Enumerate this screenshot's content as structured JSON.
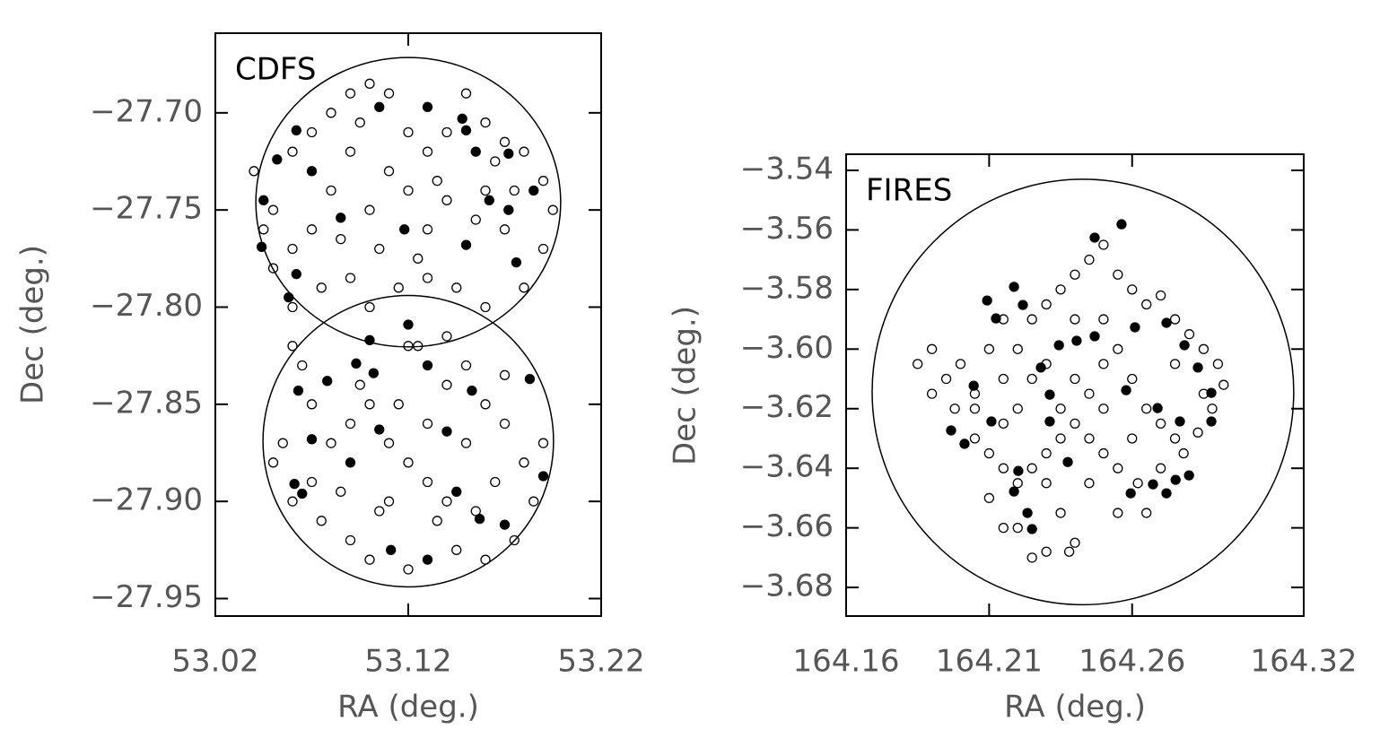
{
  "chart_data": [
    {
      "type": "scatter",
      "title": "CDFS",
      "xlabel": "RA (deg.)",
      "ylabel": "Dec (deg.)",
      "xlim": [
        53.02,
        53.22
      ],
      "ylim": [
        -27.959,
        -27.659
      ],
      "xticks": [
        53.02,
        53.12,
        53.22
      ],
      "yticks": [
        {
          "value": -27.7,
          "label": "−27.70"
        },
        {
          "value": -27.75,
          "label": "−27.75"
        },
        {
          "value": -27.8,
          "label": "−27.80"
        },
        {
          "value": -27.85,
          "label": "−27.85"
        },
        {
          "value": -27.9,
          "label": "−27.90"
        },
        {
          "value": -27.95,
          "label": "−27.95"
        }
      ],
      "fields": [
        {
          "x": 53.12,
          "y": -27.746,
          "rx": 0.079,
          "ry": 0.0745
        },
        {
          "x": 53.12,
          "y": -27.869,
          "rx": 0.0753,
          "ry": 0.075
        }
      ],
      "series": [
        {
          "marker": "open",
          "color": "#000000",
          "x": [
            53.04,
            53.05,
            53.06,
            53.07,
            53.08,
            53.09,
            53.1,
            53.11,
            53.12,
            53.13,
            53.14,
            53.15,
            53.16,
            53.17,
            53.18,
            53.19,
            53.195,
            53.19,
            53.18,
            53.17,
            53.16,
            53.14,
            53.13,
            53.12,
            53.11,
            53.1,
            53.09,
            53.08,
            53.07,
            53.06,
            53.05,
            53.06,
            53.075,
            53.09,
            53.1,
            53.115,
            53.13,
            53.145,
            53.16,
            53.14,
            53.12,
            53.105,
            53.125,
            53.085,
            53.155,
            53.175,
            53.045,
            53.095,
            53.135,
            53.165,
            53.06,
            53.07,
            53.055,
            53.05,
            53.06,
            53.075,
            53.085,
            53.09,
            53.1,
            53.11,
            53.12,
            53.13,
            53.14,
            53.15,
            53.16,
            53.17,
            53.18,
            53.19,
            53.185,
            53.175,
            53.16,
            53.145,
            53.135,
            53.12,
            53.11,
            53.1,
            53.09,
            53.08,
            53.095,
            53.115,
            53.13,
            53.15,
            53.165,
            53.14,
            53.07,
            53.065,
            53.125,
            53.17,
            53.155,
            53.105
          ],
          "y": [
            -27.73,
            -27.75,
            -27.72,
            -27.71,
            -27.7,
            -27.69,
            -27.685,
            -27.69,
            -27.71,
            -27.72,
            -27.71,
            -27.69,
            -27.705,
            -27.715,
            -27.72,
            -27.735,
            -27.75,
            -27.77,
            -27.79,
            -27.76,
            -27.74,
            -27.745,
            -27.76,
            -27.74,
            -27.73,
            -27.75,
            -27.72,
            -27.74,
            -27.76,
            -27.77,
            -27.78,
            -27.8,
            -27.79,
            -27.785,
            -27.8,
            -27.79,
            -27.785,
            -27.79,
            -27.8,
            -27.815,
            -27.82,
            -27.77,
            -27.775,
            -27.765,
            -27.755,
            -27.74,
            -27.76,
            -27.705,
            -27.735,
            -27.725,
            -27.82,
            -27.85,
            -27.87,
            -27.88,
            -27.9,
            -27.91,
            -27.895,
            -27.92,
            -27.93,
            -27.9,
            -27.88,
            -27.86,
            -27.84,
            -27.83,
            -27.85,
            -27.86,
            -27.88,
            -27.87,
            -27.9,
            -27.92,
            -27.93,
            -27.925,
            -27.91,
            -27.935,
            -27.87,
            -27.85,
            -27.86,
            -27.87,
            -27.84,
            -27.85,
            -27.89,
            -27.87,
            -27.89,
            -27.9,
            -27.89,
            -27.83,
            -27.82,
            -27.835,
            -27.905,
            -27.905
          ]
        },
        {
          "marker": "filled",
          "color": "#000000",
          "x": [
            53.062,
            53.07,
            53.052,
            53.105,
            53.13,
            53.148,
            53.15,
            53.155,
            53.172,
            53.185,
            53.172,
            53.162,
            53.045,
            53.044,
            53.062,
            53.058,
            53.085,
            53.118,
            53.15,
            53.176,
            53.12,
            53.13,
            53.1,
            53.093,
            53.078,
            53.063,
            53.07,
            53.09,
            53.102,
            53.153,
            53.183,
            53.14,
            53.105,
            53.145,
            53.157,
            53.13,
            53.111,
            53.17,
            53.19,
            53.061,
            53.065
          ],
          "y": [
            -27.709,
            -27.73,
            -27.724,
            -27.697,
            -27.697,
            -27.703,
            -27.709,
            -27.72,
            -27.721,
            -27.74,
            -27.75,
            -27.745,
            -27.745,
            -27.769,
            -27.783,
            -27.795,
            -27.754,
            -27.76,
            -27.768,
            -27.777,
            -27.809,
            -27.83,
            -27.817,
            -27.829,
            -27.838,
            -27.843,
            -27.868,
            -27.88,
            -27.834,
            -27.843,
            -27.837,
            -27.864,
            -27.863,
            -27.895,
            -27.909,
            -27.93,
            -27.925,
            -27.912,
            -27.887,
            -27.891,
            -27.896
          ]
        }
      ]
    },
    {
      "type": "scatter",
      "title": "FIRES",
      "xlabel": "RA (deg.)",
      "ylabel": "Dec (deg.)",
      "xlim": [
        164.16,
        164.32
      ],
      "ylim": [
        -3.6896,
        -3.5346
      ],
      "xticks": [
        164.16,
        164.21,
        164.26,
        164.32
      ],
      "yticks": [
        {
          "value": -3.54,
          "label": "−3.54"
        },
        {
          "value": -3.56,
          "label": "−3.56"
        },
        {
          "value": -3.58,
          "label": "−3.58"
        },
        {
          "value": -3.6,
          "label": "−3.60"
        },
        {
          "value": -3.62,
          "label": "−3.62"
        },
        {
          "value": -3.64,
          "label": "−3.64"
        },
        {
          "value": -3.66,
          "label": "−3.66"
        },
        {
          "value": -3.68,
          "label": "−3.68"
        }
      ],
      "fields": [
        {
          "x": 164.2428,
          "y": -3.6144,
          "rx": 0.0737,
          "ry": 0.0714
        }
      ],
      "series": [
        {
          "marker": "open",
          "color": "#000000",
          "x": [
            164.185,
            164.19,
            164.195,
            164.19,
            164.2,
            164.205,
            164.198,
            164.21,
            164.215,
            164.22,
            164.225,
            164.23,
            164.235,
            164.24,
            164.245,
            164.25,
            164.255,
            164.26,
            164.265,
            164.27,
            164.275,
            164.28,
            164.285,
            164.29,
            164.292,
            164.288,
            164.283,
            164.278,
            164.27,
            164.262,
            164.255,
            164.25,
            164.245,
            164.24,
            164.235,
            164.23,
            164.225,
            164.22,
            164.215,
            164.21,
            164.205,
            164.215,
            164.22,
            164.225,
            164.23,
            164.24,
            164.245,
            164.25,
            164.255,
            164.26,
            164.265,
            164.27,
            164.26,
            164.25,
            164.235,
            164.23,
            164.235,
            164.24,
            164.238,
            164.23,
            164.225,
            164.22,
            164.215,
            164.21,
            164.245,
            164.255,
            164.265,
            164.275,
            164.205,
            164.215,
            164.24,
            164.25,
            164.275,
            164.285
          ],
          "y": [
            -3.605,
            -3.6,
            -3.61,
            -3.615,
            -3.605,
            -3.615,
            -3.62,
            -3.6,
            -3.59,
            -3.6,
            -3.59,
            -3.585,
            -3.58,
            -3.575,
            -3.57,
            -3.565,
            -3.575,
            -3.58,
            -3.585,
            -3.582,
            -3.59,
            -3.595,
            -3.6,
            -3.605,
            -3.612,
            -3.62,
            -3.628,
            -3.635,
            -3.64,
            -3.645,
            -3.64,
            -3.635,
            -3.63,
            -3.625,
            -3.63,
            -3.635,
            -3.64,
            -3.645,
            -3.64,
            -3.635,
            -3.63,
            -3.625,
            -3.62,
            -3.61,
            -3.605,
            -3.61,
            -3.615,
            -3.605,
            -3.6,
            -3.61,
            -3.62,
            -3.625,
            -3.63,
            -3.62,
            -3.62,
            -3.645,
            -3.655,
            -3.665,
            -3.668,
            -3.668,
            -3.67,
            -3.66,
            -3.66,
            -3.65,
            -3.645,
            -3.655,
            -3.655,
            -3.63,
            -3.62,
            -3.61,
            -3.59,
            -3.59,
            -3.605,
            -3.615
          ]
        },
        {
          "marker": "filled",
          "color": "#000000",
          "x": [
            164.2563,
            164.2469,
            164.2187,
            164.2093,
            164.2124,
            164.2218,
            164.2344,
            164.2406,
            164.2469,
            164.261,
            164.272,
            164.2783,
            164.283,
            164.2877,
            164.2877,
            164.2767,
            164.2689,
            164.2579,
            164.2281,
            164.2312,
            164.2046,
            164.1967,
            164.2014,
            164.2108,
            164.2312,
            164.2202,
            164.2187,
            164.2234,
            164.225,
            164.2375,
            164.2595,
            164.2673,
            164.2752,
            164.2799,
            164.272
          ],
          "y": [
            -3.5581,
            -3.5626,
            -3.5791,
            -3.5837,
            -3.5897,
            -3.5852,
            -3.5987,
            -3.5972,
            -3.5957,
            -3.5927,
            -3.5912,
            -3.5987,
            -3.6062,
            -3.6147,
            -3.6243,
            -3.6243,
            -3.6198,
            -3.6138,
            -3.6062,
            -3.6153,
            -3.6123,
            -3.6273,
            -3.6318,
            -3.6243,
            -3.6243,
            -3.6409,
            -3.6478,
            -3.655,
            -3.6604,
            -3.6379,
            -3.6484,
            -3.6454,
            -3.6439,
            -3.6424,
            -3.6484
          ]
        }
      ]
    }
  ]
}
